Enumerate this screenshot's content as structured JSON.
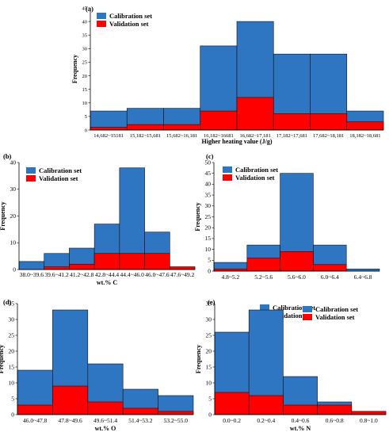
{
  "colors": {
    "calibration": "#2e75c2",
    "validation": "#ff0000",
    "edge": "#111111"
  },
  "legend": {
    "calibration_label": "Calibration set",
    "validation_label": "Validation set"
  },
  "chart_data": [
    {
      "panel": "(a)",
      "type": "bar",
      "xlabel": "Higher heating value (J/g)",
      "ylabel": "Frequency",
      "ylim": [
        0,
        45
      ],
      "yticks": [
        0,
        5,
        10,
        15,
        20,
        25,
        30,
        35,
        40,
        45
      ],
      "categories": [
        "14,682~15181",
        "15,182~15,681",
        "15,682~16,181",
        "16,182~16681",
        "16,682~17,181",
        "17,182~17,681",
        "17,682~18,181",
        "18,182~18,681"
      ],
      "series": [
        {
          "name": "Calibration set",
          "values": [
            7,
            8,
            8,
            31,
            40,
            28,
            28,
            7
          ]
        },
        {
          "name": "Validation set",
          "values": [
            1,
            2,
            2,
            7,
            12,
            6,
            6,
            3
          ]
        }
      ]
    },
    {
      "panel": "(b)",
      "type": "bar",
      "xlabel": "wt.% C",
      "ylabel": "Frequency",
      "ylim": [
        0,
        40
      ],
      "yticks": [
        0,
        10,
        20,
        30,
        40
      ],
      "categories": [
        "38.0~39.6",
        "39.6~41.2",
        "41.2~42.8",
        "42.8~44.4",
        "44.4~46.0",
        "46.0~47.6",
        "47.6~49.2"
      ],
      "series": [
        {
          "name": "Calibration set",
          "values": [
            3,
            6,
            8,
            17,
            38,
            14,
            1
          ]
        },
        {
          "name": "Validation set",
          "values": [
            0,
            1,
            2,
            6,
            6,
            6,
            1
          ]
        }
      ]
    },
    {
      "panel": "(c)",
      "type": "bar",
      "xlabel": "",
      "ylabel": "Frequency",
      "ylim": [
        0,
        50
      ],
      "yticks": [
        0,
        5,
        10,
        15,
        20,
        25,
        30,
        35,
        40,
        45,
        50
      ],
      "categories": [
        "4.8~5.2",
        "5.2~5.6",
        "5.6~6.0",
        "6.0~6.4",
        "6.4~6.8"
      ],
      "series": [
        {
          "name": "Calibration set",
          "values": [
            4,
            12,
            45,
            12,
            1
          ]
        },
        {
          "name": "Validation set",
          "values": [
            1,
            6,
            9,
            3,
            0
          ]
        }
      ]
    },
    {
      "panel": "(d)",
      "type": "bar",
      "xlabel": "wt.% O",
      "ylabel": "Frequency",
      "ylim": [
        0,
        35
      ],
      "yticks": [
        0,
        5,
        10,
        15,
        20,
        25,
        30,
        35
      ],
      "categories": [
        "46.0~47.8",
        "47.8~49.6",
        "49.6~51.4",
        "51.4~53.2",
        "53.2~55.0"
      ],
      "series": [
        {
          "name": "Calibration set",
          "values": [
            14,
            33,
            16,
            8,
            6
          ]
        },
        {
          "name": "Validation set",
          "values": [
            3,
            9,
            4,
            2,
            1
          ]
        }
      ]
    },
    {
      "panel": "(e)",
      "type": "bar",
      "xlabel": "wt.% N",
      "ylabel": "Frequency",
      "ylim": [
        0,
        35
      ],
      "yticks": [
        0,
        5,
        10,
        15,
        20,
        25,
        30,
        35
      ],
      "categories": [
        "0.0~0.2",
        "0.2~0.4",
        "0.4~0.6",
        "0.6~0.8",
        "0.8~1.0"
      ],
      "series": [
        {
          "name": "Calibration set",
          "values": [
            26,
            33,
            12,
            4,
            1
          ]
        },
        {
          "name": "Validation set",
          "values": [
            7,
            6,
            3,
            3,
            1
          ]
        }
      ]
    }
  ]
}
